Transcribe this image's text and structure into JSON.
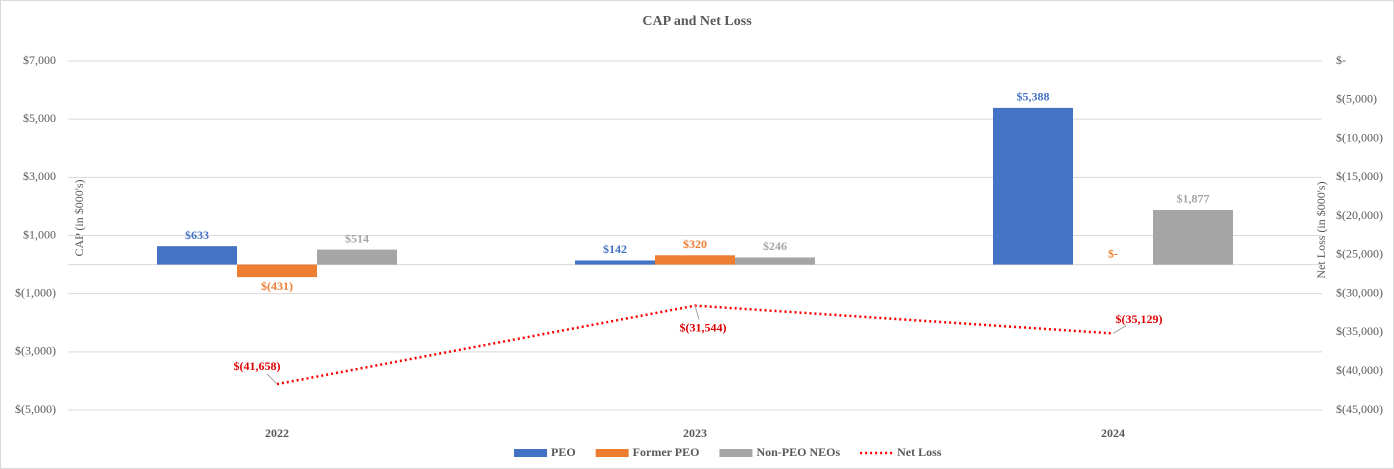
{
  "chart_data": {
    "type": "bar",
    "title": "CAP and Net Loss",
    "y_label": "CAP (in $000's)",
    "y2_label": "Net Loss (in $000's)",
    "categories": [
      "2022",
      "2023",
      "2024"
    ],
    "series": [
      {
        "name": "PEO",
        "color": "#4472c4",
        "values": [
          633,
          142,
          5388
        ],
        "value_labels": [
          "$633",
          "$142",
          "$5,388"
        ]
      },
      {
        "name": "Former PEO",
        "color": "#ed7d31",
        "values": [
          -431,
          320,
          0
        ],
        "value_labels": [
          "$(431)",
          "$320",
          "$-"
        ]
      },
      {
        "name": "Non-PEO NEOs",
        "color": "#a5a5a5",
        "values": [
          514,
          246,
          1877
        ],
        "value_labels": [
          "$514",
          "$246",
          "$1,877"
        ]
      },
      {
        "name": "Net Loss",
        "type": "line",
        "axis": "y2",
        "color": "#ff0000",
        "values": [
          -41658,
          -31544,
          -35129
        ],
        "value_labels": [
          "$(41,658)",
          "$(31,544)",
          "$(35,129)"
        ]
      }
    ],
    "ylim": [
      -5000,
      7000
    ],
    "yticks": [
      {
        "value": -5000,
        "label": "$(5,000)"
      },
      {
        "value": -3000,
        "label": "$(3,000)"
      },
      {
        "value": -1000,
        "label": "$(1,000)"
      },
      {
        "value": 1000,
        "label": "$1,000"
      },
      {
        "value": 3000,
        "label": "$3,000"
      },
      {
        "value": 5000,
        "label": "$5,000"
      },
      {
        "value": 7000,
        "label": "$7,000"
      }
    ],
    "y2lim": [
      -45000,
      0
    ],
    "y2ticks": [
      {
        "value": -45000,
        "label": "$(45,000)"
      },
      {
        "value": -40000,
        "label": "$(40,000)"
      },
      {
        "value": -35000,
        "label": "$(35,000)"
      },
      {
        "value": -30000,
        "label": "$(30,000)"
      },
      {
        "value": -25000,
        "label": "$(25,000)"
      },
      {
        "value": -20000,
        "label": "$(20,000)"
      },
      {
        "value": -15000,
        "label": "$(15,000)"
      },
      {
        "value": -10000,
        "label": "$(10,000)"
      },
      {
        "value": -5000,
        "label": "$(5,000)"
      },
      {
        "value": 0,
        "label": "$-"
      }
    ],
    "grid": true
  }
}
